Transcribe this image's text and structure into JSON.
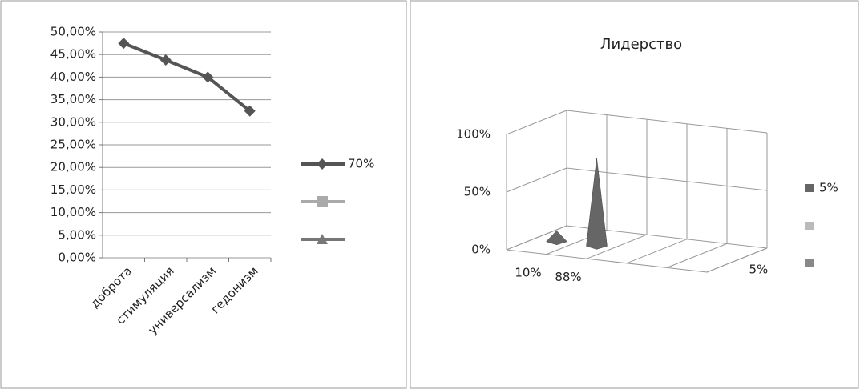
{
  "chart_data": [
    {
      "type": "line",
      "categories": [
        "доброта",
        "стимуляция",
        "универсализм",
        "гедонизм"
      ],
      "series": [
        {
          "name": "70%",
          "color": "#555555",
          "marker": "diamond",
          "values": [
            47.5,
            43.8,
            40,
            32.5
          ]
        },
        {
          "color": "#aaaaaa",
          "marker": "square",
          "values": [
            null,
            null,
            null,
            null
          ]
        },
        {
          "color": "#777777",
          "marker": "triangle",
          "values": [
            null,
            null,
            null,
            null
          ]
        }
      ],
      "ylim": [
        0,
        50
      ],
      "yticks": [
        {
          "value": 0,
          "label": "0,00%"
        },
        {
          "value": 5,
          "label": "5,00%"
        },
        {
          "value": 10,
          "label": "10,00%"
        },
        {
          "value": 15,
          "label": "15,00%"
        },
        {
          "value": 20,
          "label": "20,00%"
        },
        {
          "value": 25,
          "label": "25,00%"
        },
        {
          "value": 30,
          "label": "30,00%"
        },
        {
          "value": 35,
          "label": "35,00%"
        },
        {
          "value": 40,
          "label": "40,00%"
        },
        {
          "value": 45,
          "label": "45,00%"
        },
        {
          "value": 50,
          "label": "50,00%"
        }
      ],
      "grid": true,
      "legend": "right"
    },
    {
      "type": "cone3d",
      "title": "Лидерство",
      "categories": [
        "10%",
        "88%",
        null,
        null,
        null
      ],
      "series": [
        {
          "name": "5%",
          "color": "#666666",
          "values": [
            8,
            75,
            null,
            null,
            null
          ]
        },
        {
          "color": "#bbbbbb",
          "values": [
            null,
            null,
            null,
            null,
            null
          ]
        },
        {
          "color": "#888888",
          "values": [
            null,
            null,
            null,
            null,
            null
          ]
        }
      ],
      "ylim": [
        0,
        100
      ],
      "yticks": [
        {
          "value": 0,
          "label": "0%"
        },
        {
          "value": 50,
          "label": "50%"
        },
        {
          "value": 100,
          "label": "100%"
        }
      ],
      "grid": true,
      "legend": "right"
    }
  ]
}
